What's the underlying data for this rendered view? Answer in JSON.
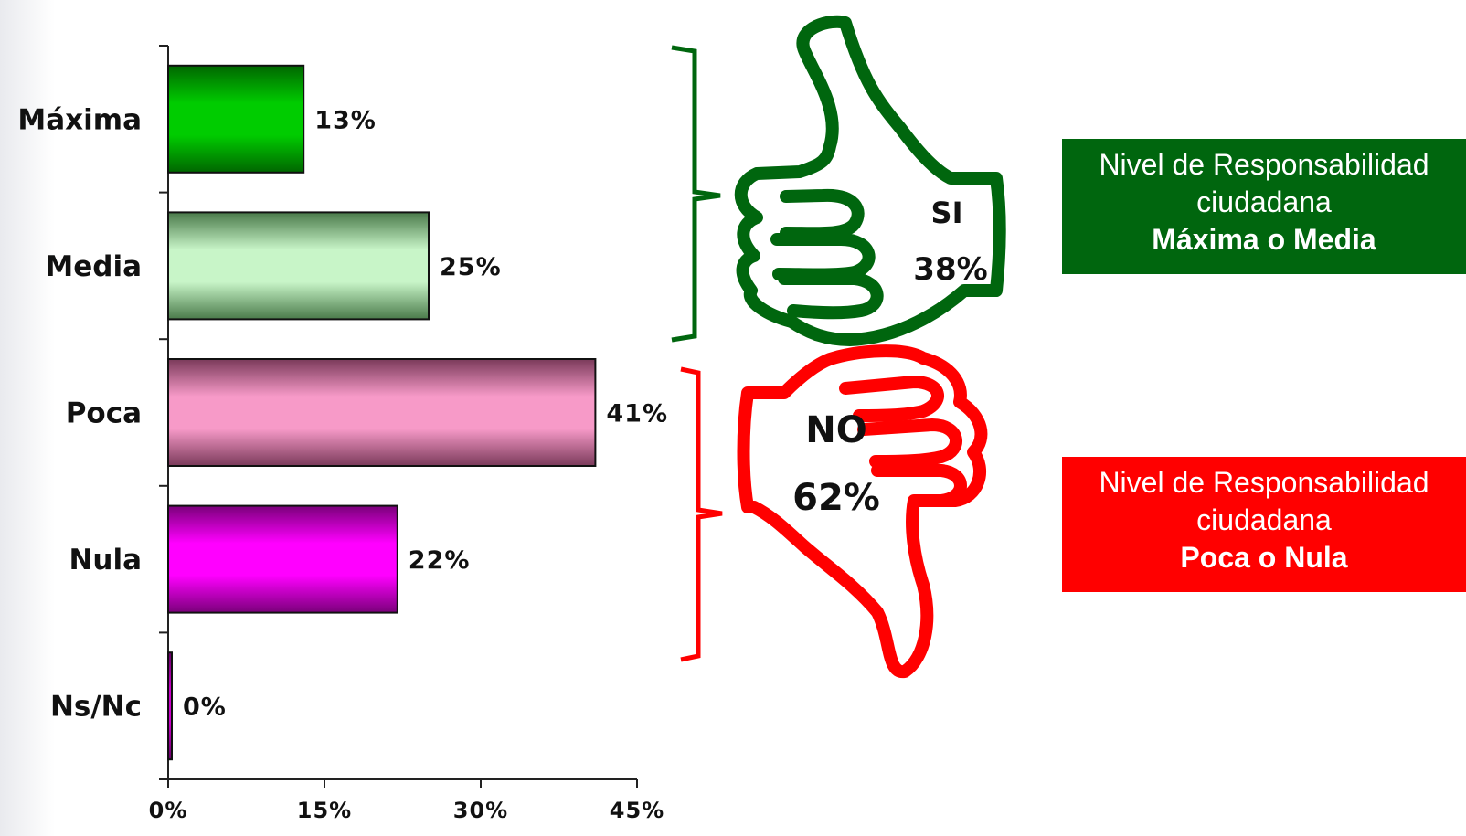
{
  "chart_data": {
    "type": "bar",
    "orientation": "horizontal",
    "categories": [
      "Máxima",
      "Media",
      "Poca",
      "Nula",
      "Ns/Nc"
    ],
    "values": [
      13,
      25,
      41,
      22,
      0
    ],
    "value_labels": [
      "13%",
      "25%",
      "41%",
      "22%",
      "0%"
    ],
    "bar_colors": [
      "#00cc00",
      "#c8f5c8",
      "#f79ac8",
      "#ff00ff",
      "#cc00cc"
    ],
    "bar_edge_colors": [
      "#006600",
      "#4a7a4a",
      "#7a3a5a",
      "#7a007a",
      "#660066"
    ],
    "xlim": [
      0,
      45
    ],
    "xticks": [
      0,
      15,
      30,
      45
    ],
    "xtick_labels": [
      "0%",
      "15%",
      "30%",
      "45%"
    ],
    "grid": false
  },
  "annotations": {
    "si": {
      "label": "SI",
      "value": "38%",
      "color": "#00660e"
    },
    "no": {
      "label": "NO",
      "value": "62%",
      "color": "#ff0000"
    }
  },
  "boxes": {
    "si": {
      "line1": "Nivel de Responsabilidad",
      "line2": "ciudadana",
      "bold": "Máxima o Media",
      "color": "#00660e"
    },
    "no": {
      "line1": "Nivel de Responsabilidad",
      "line2": "ciudadana",
      "bold": "Poca o Nula",
      "color": "#ff0000"
    }
  }
}
